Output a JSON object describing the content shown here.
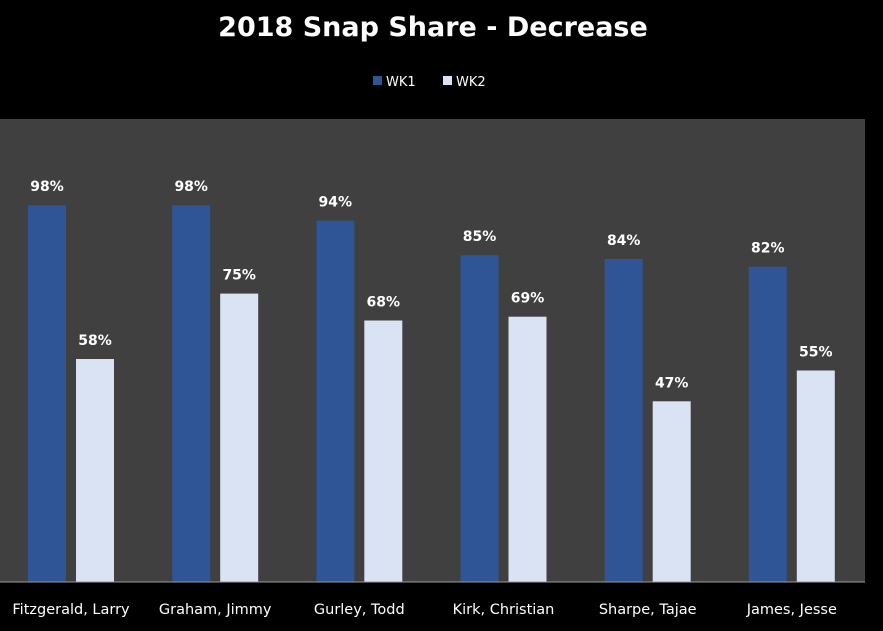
{
  "chart_data": {
    "type": "bar",
    "title": "2018 Snap Share - Decrease",
    "categories": [
      "Fitzgerald, Larry",
      "Graham, Jimmy",
      "Gurley, Todd",
      "Kirk, Christian",
      "Sharpe, Tajae",
      "James, Jesse"
    ],
    "series": [
      {
        "name": "WK1",
        "values": [
          98,
          98,
          94,
          85,
          84,
          82
        ],
        "labels": [
          "98%",
          "98%",
          "94%",
          "85%",
          "84%",
          "82%"
        ],
        "color": "#2f5597"
      },
      {
        "name": "WK2",
        "values": [
          58,
          75,
          68,
          69,
          47,
          55
        ],
        "labels": [
          "58%",
          "75%",
          "68%",
          "69%",
          "47%",
          "55%"
        ],
        "color": "#dae3f3"
      }
    ],
    "ylim": [
      0,
      100
    ],
    "value_format": "percent",
    "grid": false,
    "legend_position": "top",
    "plot_background": "#404040",
    "page_background": "#000000",
    "text_color": "#ffffff"
  }
}
